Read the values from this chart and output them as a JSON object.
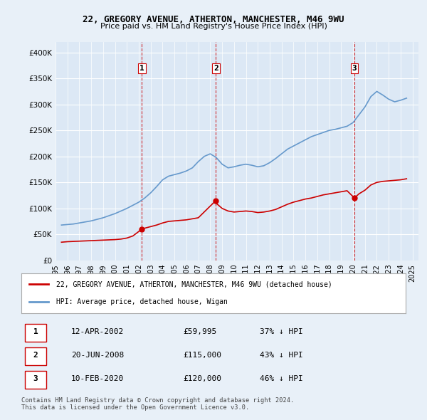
{
  "title": "22, GREGORY AVENUE, ATHERTON, MANCHESTER, M46 9WU",
  "subtitle": "Price paid vs. HM Land Registry's House Price Index (HPI)",
  "background_color": "#e8f0f8",
  "plot_bg_color": "#dce8f5",
  "ylabel_ticks": [
    "£0",
    "£50K",
    "£100K",
    "£150K",
    "£200K",
    "£250K",
    "£300K",
    "£350K",
    "£400K"
  ],
  "ytick_vals": [
    0,
    50000,
    100000,
    150000,
    200000,
    250000,
    300000,
    350000,
    400000
  ],
  "ylim": [
    0,
    420000
  ],
  "xlim_start": 1995.0,
  "xlim_end": 2025.5,
  "hpi_years": [
    1995.5,
    1996.0,
    1996.5,
    1997.0,
    1997.5,
    1998.0,
    1998.5,
    1999.0,
    1999.5,
    2000.0,
    2000.5,
    2001.0,
    2001.5,
    2002.0,
    2002.5,
    2003.0,
    2003.5,
    2004.0,
    2004.5,
    2005.0,
    2005.5,
    2006.0,
    2006.5,
    2007.0,
    2007.5,
    2008.0,
    2008.5,
    2009.0,
    2009.5,
    2010.0,
    2010.5,
    2011.0,
    2011.5,
    2012.0,
    2012.5,
    2013.0,
    2013.5,
    2014.0,
    2014.5,
    2015.0,
    2015.5,
    2016.0,
    2016.5,
    2017.0,
    2017.5,
    2018.0,
    2018.5,
    2019.0,
    2019.5,
    2020.0,
    2020.5,
    2021.0,
    2021.5,
    2022.0,
    2022.5,
    2023.0,
    2023.5,
    2024.0,
    2024.5
  ],
  "hpi_values": [
    68000,
    69000,
    70000,
    72000,
    74000,
    76000,
    79000,
    82000,
    86000,
    90000,
    95000,
    100000,
    106000,
    112000,
    120000,
    130000,
    142000,
    155000,
    162000,
    165000,
    168000,
    172000,
    178000,
    190000,
    200000,
    205000,
    198000,
    185000,
    178000,
    180000,
    183000,
    185000,
    183000,
    180000,
    182000,
    188000,
    196000,
    205000,
    214000,
    220000,
    226000,
    232000,
    238000,
    242000,
    246000,
    250000,
    252000,
    255000,
    258000,
    265000,
    280000,
    295000,
    315000,
    325000,
    318000,
    310000,
    305000,
    308000,
    312000
  ],
  "price_years": [
    1995.5,
    1996.0,
    1996.5,
    1997.0,
    1997.5,
    1998.0,
    1998.5,
    1999.0,
    1999.5,
    2000.0,
    2000.5,
    2001.0,
    2001.5,
    2002.25,
    2002.5,
    2003.0,
    2003.5,
    2004.0,
    2004.5,
    2005.0,
    2005.5,
    2006.0,
    2006.5,
    2007.0,
    2008.47,
    2008.5,
    2009.0,
    2009.5,
    2010.0,
    2010.5,
    2011.0,
    2011.5,
    2012.0,
    2012.5,
    2013.0,
    2013.5,
    2014.0,
    2014.5,
    2015.0,
    2015.5,
    2016.0,
    2016.5,
    2017.0,
    2017.5,
    2018.0,
    2018.5,
    2019.0,
    2019.5,
    2020.12,
    2020.5,
    2021.0,
    2021.5,
    2022.0,
    2022.5,
    2023.0,
    2023.5,
    2024.0,
    2024.5
  ],
  "price_values": [
    35000,
    36000,
    36500,
    37000,
    37500,
    38000,
    38500,
    39000,
    39500,
    40000,
    41000,
    43000,
    47000,
    59995,
    62000,
    65000,
    68000,
    72000,
    75000,
    76000,
    77000,
    78000,
    80000,
    82000,
    115000,
    110000,
    100000,
    95000,
    93000,
    94000,
    95000,
    94000,
    92000,
    93000,
    95000,
    98000,
    103000,
    108000,
    112000,
    115000,
    118000,
    120000,
    123000,
    126000,
    128000,
    130000,
    132000,
    134000,
    120000,
    128000,
    135000,
    145000,
    150000,
    152000,
    153000,
    154000,
    155000,
    157000
  ],
  "sale_points": [
    {
      "year": 2002.25,
      "price": 59995,
      "label": "1"
    },
    {
      "year": 2008.47,
      "price": 115000,
      "label": "2"
    },
    {
      "year": 2020.12,
      "price": 120000,
      "label": "3"
    }
  ],
  "vline_years": [
    2002.25,
    2008.47,
    2020.12
  ],
  "xtick_years": [
    1995,
    1996,
    1997,
    1998,
    1999,
    2000,
    2001,
    2002,
    2003,
    2004,
    2005,
    2006,
    2007,
    2008,
    2009,
    2010,
    2011,
    2012,
    2013,
    2014,
    2015,
    2016,
    2017,
    2018,
    2019,
    2020,
    2021,
    2022,
    2023,
    2024,
    2025
  ],
  "legend_line1": "22, GREGORY AVENUE, ATHERTON, MANCHESTER, M46 9WU (detached house)",
  "legend_line2": "HPI: Average price, detached house, Wigan",
  "table_rows": [
    {
      "num": "1",
      "date": "12-APR-2002",
      "price": "£59,995",
      "note": "37% ↓ HPI"
    },
    {
      "num": "2",
      "date": "20-JUN-2008",
      "price": "£115,000",
      "note": "43% ↓ HPI"
    },
    {
      "num": "3",
      "date": "10-FEB-2020",
      "price": "£120,000",
      "note": "46% ↓ HPI"
    }
  ],
  "footer": "Contains HM Land Registry data © Crown copyright and database right 2024.\nThis data is licensed under the Open Government Licence v3.0.",
  "line_color_red": "#cc0000",
  "line_color_blue": "#6699cc",
  "vline_color": "#cc0000"
}
